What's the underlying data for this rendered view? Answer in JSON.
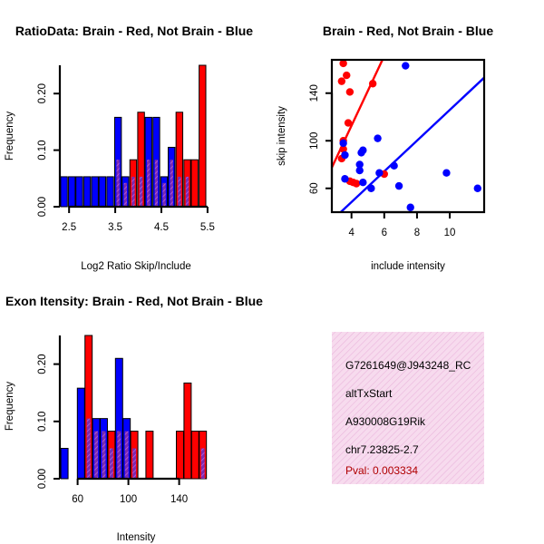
{
  "colors": {
    "red": "#ff0000",
    "blue": "#0000ff",
    "overlap_fill": "#7a2ab0",
    "overlap_hatch": "#c060e0",
    "info_bg": "#f7dbee",
    "info_hatch": "#eab6dc",
    "pval": "#b00000"
  },
  "info_box": {
    "lines": [
      "G7261649@J943248_RC",
      "altTxStart",
      "A930008G19Rik",
      "chr7.23825-2.7"
    ],
    "pval": "Pval: 0.003334"
  },
  "chart_data": [
    {
      "id": "ratio",
      "type": "bar",
      "title": "RatioData: Brain - Red, Not Brain - Blue",
      "xlabel": "Log2 Ratio Skip/Include",
      "ylabel": "Frequency",
      "xlim": [
        2.3,
        5.6
      ],
      "ylim": [
        0,
        0.25
      ],
      "xticks": [
        2.5,
        3.5,
        4.5,
        5.5
      ],
      "xticklabels": [
        "2.5",
        "3.5",
        "4.5",
        "5.5"
      ],
      "yticks": [
        0,
        0.1,
        0.2
      ],
      "yticklabels": [
        "0.00",
        "0.10",
        "0.20"
      ],
      "bin_width": 0.165,
      "series": [
        {
          "name": "Not Brain",
          "color": "blue",
          "bins": [
            [
              2.4,
              0.053
            ],
            [
              2.57,
              0.053
            ],
            [
              2.73,
              0.053
            ],
            [
              2.9,
              0.053
            ],
            [
              3.07,
              0.053
            ],
            [
              3.23,
              0.053
            ],
            [
              3.4,
              0.053
            ],
            [
              3.57,
              0.158
            ],
            [
              3.73,
              0.053
            ],
            [
              3.9,
              0.053
            ],
            [
              4.07,
              0.053
            ],
            [
              4.23,
              0.158
            ],
            [
              4.4,
              0.158
            ],
            [
              4.57,
              0.053
            ],
            [
              4.73,
              0.105
            ],
            [
              4.9,
              0.053
            ],
            [
              5.07,
              0.053
            ]
          ]
        },
        {
          "name": "Brain",
          "color": "red",
          "bins": [
            [
              3.57,
              0.083
            ],
            [
              3.73,
              0.042
            ],
            [
              3.9,
              0.083
            ],
            [
              4.07,
              0.167
            ],
            [
              4.23,
              0.083
            ],
            [
              4.4,
              0.083
            ],
            [
              4.57,
              0.042
            ],
            [
              4.73,
              0.083
            ],
            [
              4.9,
              0.167
            ],
            [
              5.07,
              0.083
            ],
            [
              5.23,
              0.083
            ],
            [
              5.4,
              0.25
            ]
          ]
        }
      ]
    },
    {
      "id": "scatter",
      "type": "scatter",
      "title": "Brain - Red, Not Brain - Blue",
      "xlabel": "include intensity",
      "ylabel": "skip intensity",
      "xlim": [
        2.8,
        12.1
      ],
      "ylim": [
        40,
        168
      ],
      "xticks": [
        4,
        6,
        8,
        10
      ],
      "xticklabels": [
        "4",
        "6",
        "8",
        "10"
      ],
      "yticks": [
        60,
        100,
        140
      ],
      "yticklabels": [
        "60",
        "100",
        "140"
      ],
      "series": [
        {
          "name": "Brain",
          "color": "red",
          "points": [
            [
              3.5,
              165
            ],
            [
              3.4,
              150
            ],
            [
              3.7,
              155
            ],
            [
              3.9,
              141
            ],
            [
              5.3,
              148
            ],
            [
              3.8,
              115
            ],
            [
              3.5,
              100
            ],
            [
              3.5,
              93
            ],
            [
              3.4,
              85
            ],
            [
              3.9,
              66
            ],
            [
              4.1,
              65
            ],
            [
              4.3,
              64
            ],
            [
              6,
              72
            ]
          ],
          "fit": {
            "x": [
              2.8,
              12.1
            ],
            "y": [
              77.5,
              350
            ]
          }
        },
        {
          "name": "Not Brain",
          "color": "blue",
          "points": [
            [
              3.5,
              98
            ],
            [
              3.6,
              88
            ],
            [
              3.6,
              68
            ],
            [
              4.5,
              80
            ],
            [
              4.5,
              75
            ],
            [
              4.6,
              90
            ],
            [
              4.7,
              92
            ],
            [
              5.2,
              60
            ],
            [
              4.7,
              65
            ],
            [
              5.6,
              102
            ],
            [
              5.7,
              73
            ],
            [
              6.6,
              79
            ],
            [
              6.9,
              62
            ],
            [
              7.3,
              163
            ],
            [
              7.6,
              44
            ],
            [
              9.8,
              73
            ],
            [
              11.7,
              60
            ]
          ],
          "fit": {
            "x": [
              2.8,
              12.1
            ],
            "y": [
              33,
              153
            ]
          }
        }
      ]
    },
    {
      "id": "intensity",
      "type": "bar",
      "title": "Exon Itensity: Brain - Red, Not Brain - Blue",
      "xlabel": "Intensity",
      "ylabel": "Frequency",
      "xlim": [
        46,
        166
      ],
      "ylim": [
        0,
        0.25
      ],
      "xticks": [
        60,
        100,
        140
      ],
      "xticklabels": [
        "60",
        "100",
        "140"
      ],
      "yticks": [
        0,
        0.1,
        0.2
      ],
      "yticklabels": [
        "0.00",
        "0.10",
        "0.20"
      ],
      "bin_width": 6.4,
      "series": [
        {
          "name": "Not Brain",
          "color": "blue",
          "bins": [
            [
              50,
              0.053
            ],
            [
              57,
              0.0
            ],
            [
              63,
              0.158
            ],
            [
              69,
              0.105
            ],
            [
              75,
              0.105
            ],
            [
              81,
              0.105
            ],
            [
              87,
              0.053
            ],
            [
              93,
              0.21
            ],
            [
              99,
              0.105
            ],
            [
              105,
              0.053
            ],
            [
              111,
              0.0
            ],
            [
              117,
              0.0
            ],
            [
              123,
              0.0
            ],
            [
              129,
              0.0
            ],
            [
              135,
              0.0
            ],
            [
              141,
              0.0
            ],
            [
              147,
              0.0
            ],
            [
              153,
              0.0
            ],
            [
              159,
              0.053
            ]
          ]
        },
        {
          "name": "Brain",
          "color": "red",
          "bins": [
            [
              50,
              0.0
            ],
            [
              57,
              0.0
            ],
            [
              63,
              0.0
            ],
            [
              69,
              0.25
            ],
            [
              75,
              0.083
            ],
            [
              81,
              0.083
            ],
            [
              87,
              0.083
            ],
            [
              93,
              0.083
            ],
            [
              99,
              0.083
            ],
            [
              105,
              0.083
            ],
            [
              111,
              0.0
            ],
            [
              117,
              0.083
            ],
            [
              123,
              0.0
            ],
            [
              129,
              0.0
            ],
            [
              135,
              0.0
            ],
            [
              141,
              0.083
            ],
            [
              147,
              0.167
            ],
            [
              153,
              0.083
            ],
            [
              159,
              0.083
            ]
          ]
        }
      ]
    }
  ]
}
